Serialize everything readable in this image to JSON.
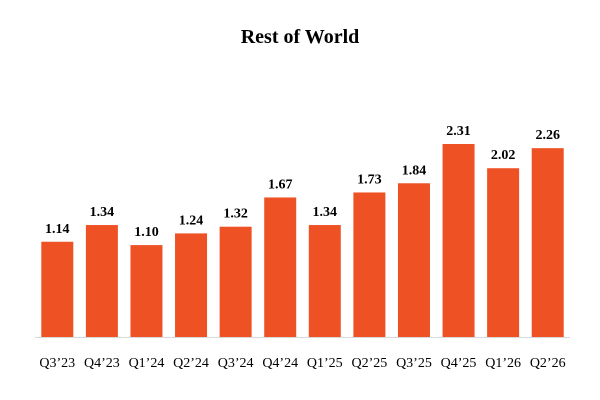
{
  "chart_data": {
    "type": "bar",
    "title": "Rest of World",
    "xlabel": "",
    "ylabel": "",
    "categories": [
      "Q3’23",
      "Q4’23",
      "Q1’24",
      "Q2’24",
      "Q3’24",
      "Q4’24",
      "Q1’25",
      "Q2’25",
      "Q3’25",
      "Q4’25",
      "Q1’26",
      "Q2’26"
    ],
    "values": [
      1.14,
      1.34,
      1.1,
      1.24,
      1.32,
      1.67,
      1.34,
      1.73,
      1.84,
      2.31,
      2.02,
      2.26
    ],
    "value_labels": [
      "1.14",
      "1.34",
      "1.10",
      "1.24",
      "1.32",
      "1.67",
      "1.34",
      "1.73",
      "1.84",
      "2.31",
      "2.02",
      "2.26"
    ],
    "ylim": [
      0,
      2.31
    ],
    "grid": false,
    "legend": "none",
    "bar_color": "#EE5124",
    "axis_color": "#D9D9D9"
  }
}
